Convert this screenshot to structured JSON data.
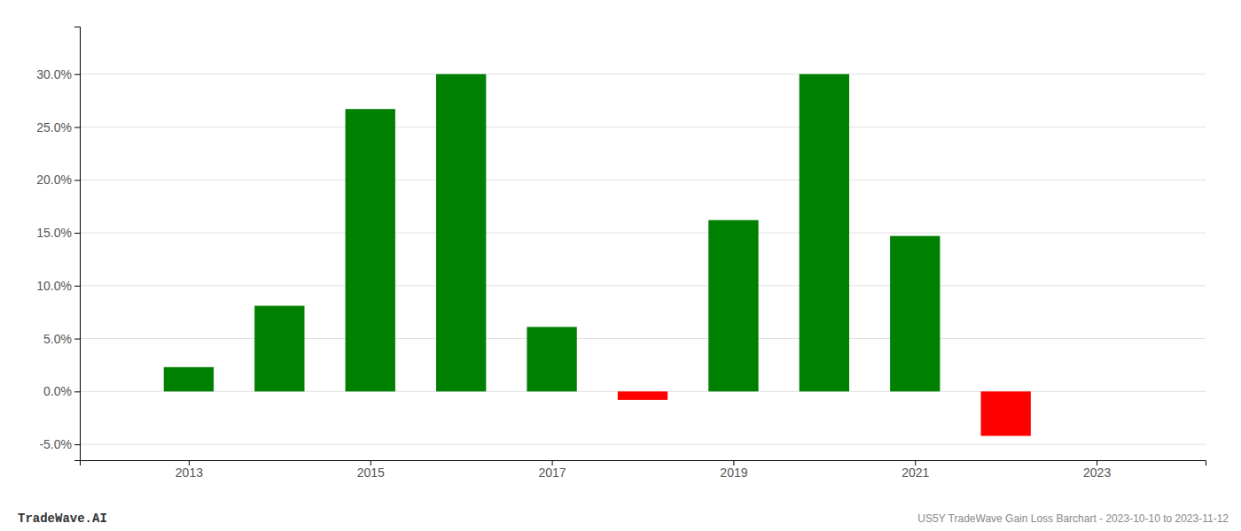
{
  "chart_data": {
    "type": "bar",
    "x": [
      2013,
      2014,
      2015,
      2016,
      2017,
      2018,
      2019,
      2020,
      2021,
      2022
    ],
    "values": [
      0.023,
      0.081,
      0.267,
      0.3,
      0.061,
      -0.008,
      0.162,
      0.3,
      0.147,
      -0.042
    ],
    "colors": [
      "#008000",
      "#008000",
      "#008000",
      "#008000",
      "#008000",
      "#ff0000",
      "#008000",
      "#008000",
      "#008000",
      "#ff0000"
    ],
    "xlim": [
      2011.8,
      2024.2
    ],
    "xticks": [
      2013,
      2015,
      2017,
      2019,
      2021,
      2023
    ],
    "ylim": [
      -0.065,
      0.345
    ],
    "yticks": [
      {
        "value": -0.05,
        "label": "-5.0%"
      },
      {
        "value": 0.0,
        "label": "0.0%"
      },
      {
        "value": 0.05,
        "label": "5.0%"
      },
      {
        "value": 0.1,
        "label": "10.0%"
      },
      {
        "value": 0.15,
        "label": "15.0%"
      },
      {
        "value": 0.2,
        "label": "20.0%"
      },
      {
        "value": 0.25,
        "label": "25.0%"
      },
      {
        "value": 0.3,
        "label": "30.0%"
      }
    ],
    "grid": true,
    "annotations": [
      "TradeWave.AI",
      "US5Y TradeWave Gain Loss Barchart - 2023-10-10 to 2023-11-12"
    ]
  }
}
